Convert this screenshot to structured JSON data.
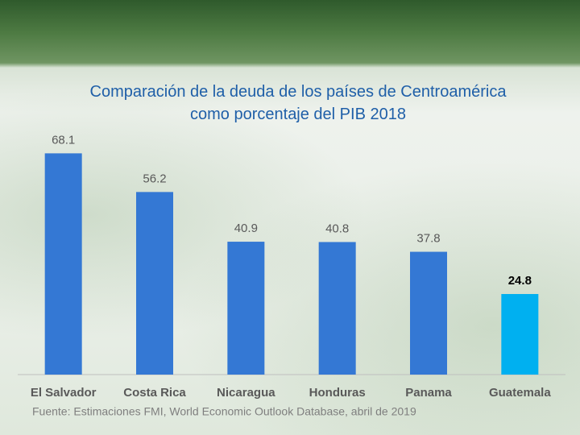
{
  "chart_data": {
    "type": "bar",
    "title": "Comparación de la deuda de los países de Centroamérica como porcentaje del PIB 2018",
    "categories": [
      "El Salvador",
      "Costa Rica",
      "Nicaragua",
      "Honduras",
      "Panama",
      "Guatemala"
    ],
    "values": [
      68.1,
      56.2,
      40.9,
      40.8,
      37.8,
      24.8
    ],
    "colors": [
      "#3478d4",
      "#3478d4",
      "#3478d4",
      "#3478d4",
      "#3478d4",
      "#00b0f0"
    ],
    "ylim": [
      0,
      70
    ],
    "source": "Fuente: Estimaciones  FMI, World Economic Outlook Database, abril de 2019"
  }
}
